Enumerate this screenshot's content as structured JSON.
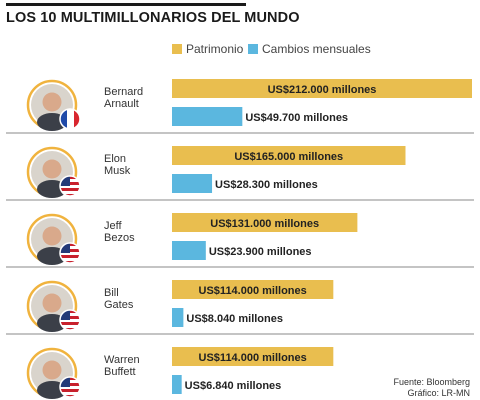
{
  "title": "LOS 10 MULTIMILLONARIOS DEL MUNDO",
  "colors": {
    "patrimonio": "#E9BE4F",
    "cambios": "#5BB7DF",
    "divider": "#888888",
    "avatar_ring": "#F0B33E"
  },
  "source_lines": [
    "Fuente: Bloomberg",
    "Gráfico: LR-MN"
  ],
  "chart_data": {
    "type": "bar",
    "orientation": "horizontal",
    "categories": [
      [
        "Bernard",
        "Arnault"
      ],
      [
        "Elon",
        "Musk"
      ],
      [
        "Jeff",
        "Bezos"
      ],
      [
        "Bill",
        "Gates"
      ],
      [
        "Warren",
        "Buffett"
      ]
    ],
    "flags": [
      "france",
      "usa",
      "usa",
      "usa",
      "usa"
    ],
    "legend": [
      "Patrimonio",
      "Cambios mensuales"
    ],
    "legend_position": "top",
    "grid": false,
    "xlim": [
      0,
      212000
    ],
    "series": [
      {
        "name": "Patrimonio",
        "values": [
          212000,
          165000,
          131000,
          114000,
          114000
        ],
        "labels": [
          "US$212.000 millones",
          "US$165.000 millones",
          "US$131.000 millones",
          "US$114.000 millones",
          "US$114.000 millones"
        ]
      },
      {
        "name": "Cambios mensuales",
        "values": [
          49700,
          28300,
          23900,
          8040,
          6840
        ],
        "labels": [
          "US$49.700 millones",
          "US$28.300 millones",
          "US$23.900 millones",
          "US$8.040 millones",
          "US$6.840 millones"
        ]
      }
    ]
  }
}
